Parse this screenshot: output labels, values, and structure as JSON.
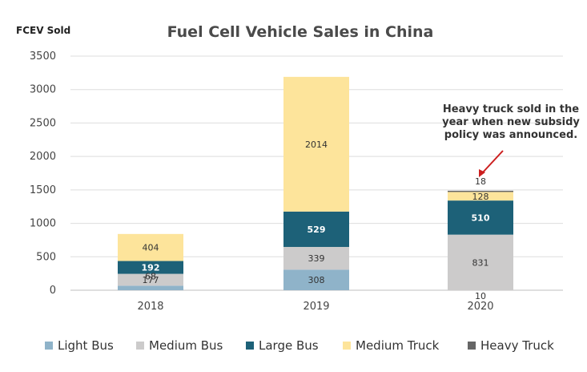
{
  "chart_data": {
    "type": "bar",
    "stacked": true,
    "title": "Fuel Cell Vehicle Sales in China",
    "ylabel": "FCEV Sold",
    "xlabel": "",
    "categories": [
      "2018",
      "2019",
      "2020"
    ],
    "ylim": [
      0,
      3500
    ],
    "yticks": [
      0,
      500,
      1000,
      1500,
      2000,
      2500,
      3000,
      3500
    ],
    "grid": true,
    "legend_position": "bottom",
    "series": [
      {
        "name": "Light Bus",
        "color": "#8fb3c9",
        "values": [
          68,
          308,
          0
        ],
        "labels": [
          "68",
          "308",
          ""
        ]
      },
      {
        "name": "Medium Bus",
        "color": "#cccbcb",
        "values": [
          177,
          339,
          831
        ],
        "labels": [
          "177",
          "339",
          "831"
        ]
      },
      {
        "name": "Large Bus",
        "color": "#1d6178",
        "values": [
          192,
          529,
          510
        ],
        "labels": [
          "192",
          "529",
          "510"
        ]
      },
      {
        "name": "Medium Truck",
        "color": "#fde49b",
        "values": [
          404,
          2014,
          128
        ],
        "labels": [
          "404",
          "2014",
          "128"
        ]
      },
      {
        "name": "Heavy Truck",
        "color": "#666666",
        "values": [
          0,
          0,
          18
        ],
        "labels": [
          "",
          "",
          "18"
        ]
      }
    ],
    "extra_labels": [
      {
        "category": "2020",
        "text": "10"
      }
    ],
    "annotation": {
      "lines": [
        "Heavy truck sold in the",
        "year when new subsidy",
        "policy was announced."
      ],
      "arrow_color": "#cc1f1f"
    }
  }
}
